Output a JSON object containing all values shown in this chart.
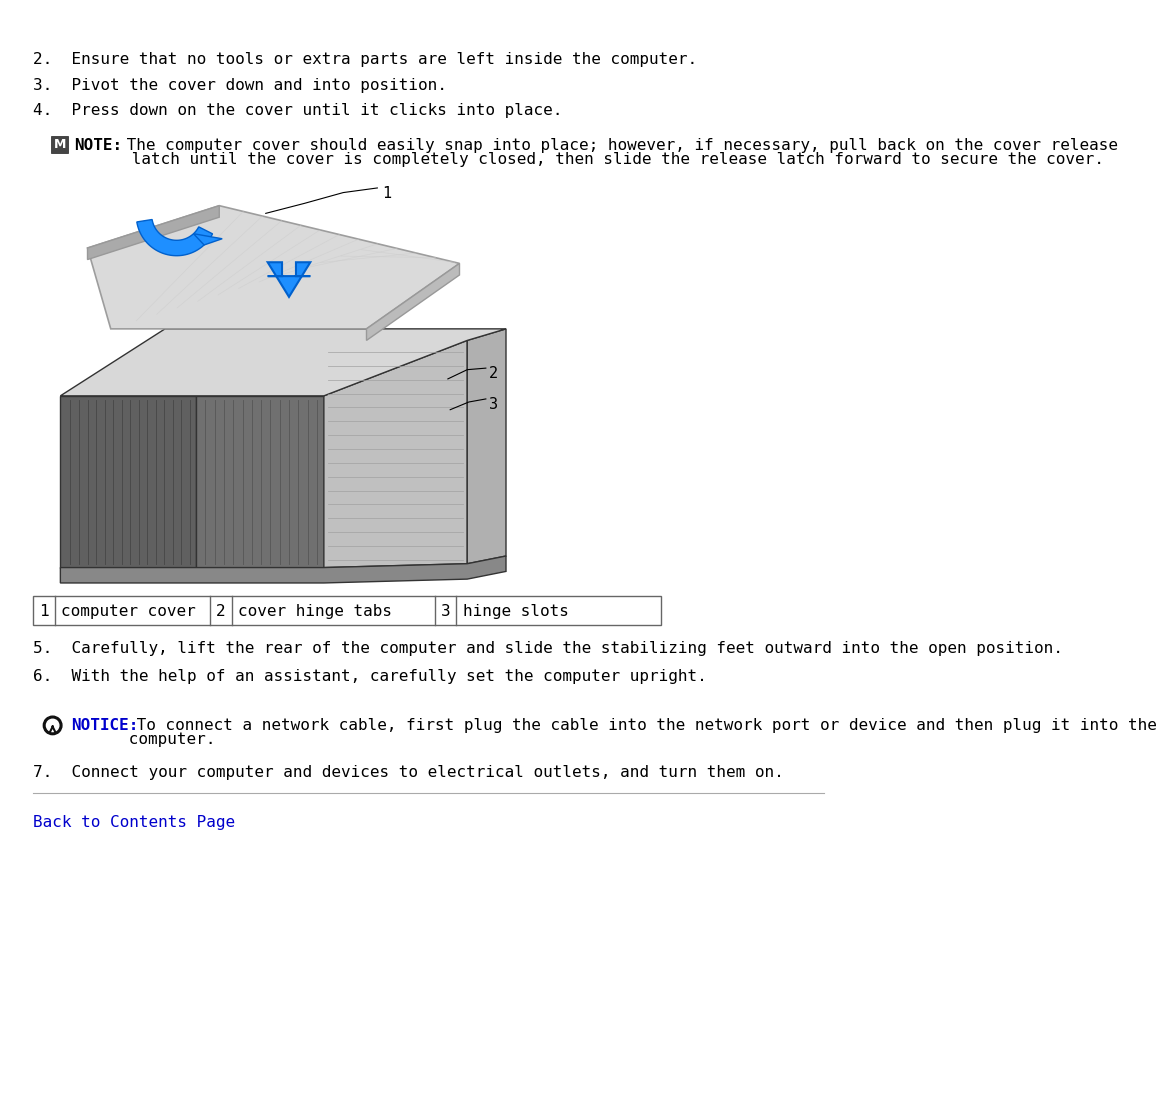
{
  "bg_color": "#ffffff",
  "text_color": "#000000",
  "font_family": "monospace",
  "step2": "2.  Ensure that no tools or extra parts are left inside the computer.",
  "step3": "3.  Pivot the cover down and into position.",
  "step4": "4.  Press down on the cover until it clicks into place.",
  "note_label": "NOTE:",
  "note_line1": " The computer cover should easily snap into place; however, if necessary, pull back on the cover release",
  "note_line2": "      latch until the cover is completely closed, then slide the release latch forward to secure the cover.",
  "step5": "5.  Carefully, lift the rear of the computer and slide the stabilizing feet outward into the open position.",
  "step6": "6.  With the help of an assistant, carefully set the computer upright.",
  "notice_label": "NOTICE:",
  "notice_line1": " To connect a network cable, first plug the cable into the network port or device and then plug it into the",
  "notice_line2": "      computer.",
  "step7": "7.  Connect your computer and devices to electrical outlets, and turn them on.",
  "back_link": "Back to Contents Page",
  "table_col1_num": "1",
  "table_col1_text": "computer cover",
  "table_col2_num": "2",
  "table_col2_text": "cover hinge tabs",
  "table_col3_num": "3",
  "table_col3_text": "hinge slots",
  "label_color": "#0000cc",
  "notice_icon_color": "#000000",
  "note_icon_color": "#333333",
  "blue_arrow_color": "#1e8fff",
  "blue_arrow_edge": "#0060cc"
}
